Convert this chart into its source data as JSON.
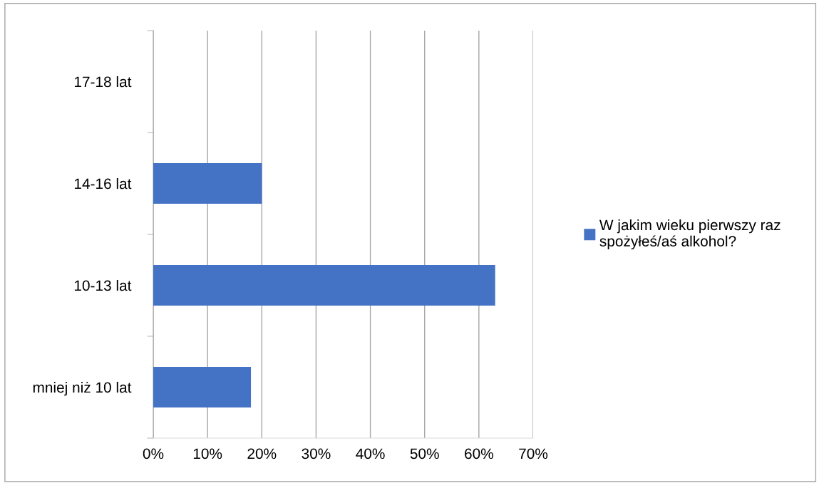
{
  "chart_data": {
    "type": "bar",
    "orientation": "horizontal",
    "categories": [
      "17-18 lat",
      "14-16 lat",
      "10-13 lat",
      "mniej niż 10 lat"
    ],
    "series": [
      {
        "name": "W jakim wieku pierwszy raz\nspożyłeś/aś alkohol?",
        "color": "#4472c4",
        "values": [
          0,
          20,
          63,
          18
        ]
      }
    ],
    "xlim": [
      0,
      70
    ],
    "xticks": [
      {
        "value": 0,
        "label": "0%"
      },
      {
        "value": 10,
        "label": "10%"
      },
      {
        "value": 20,
        "label": "20%"
      },
      {
        "value": 30,
        "label": "30%"
      },
      {
        "value": 40,
        "label": "40%"
      },
      {
        "value": 50,
        "label": "50%"
      },
      {
        "value": 60,
        "label": "60%"
      },
      {
        "value": 70,
        "label": "70%"
      }
    ],
    "grid": "x",
    "legend": "right"
  }
}
